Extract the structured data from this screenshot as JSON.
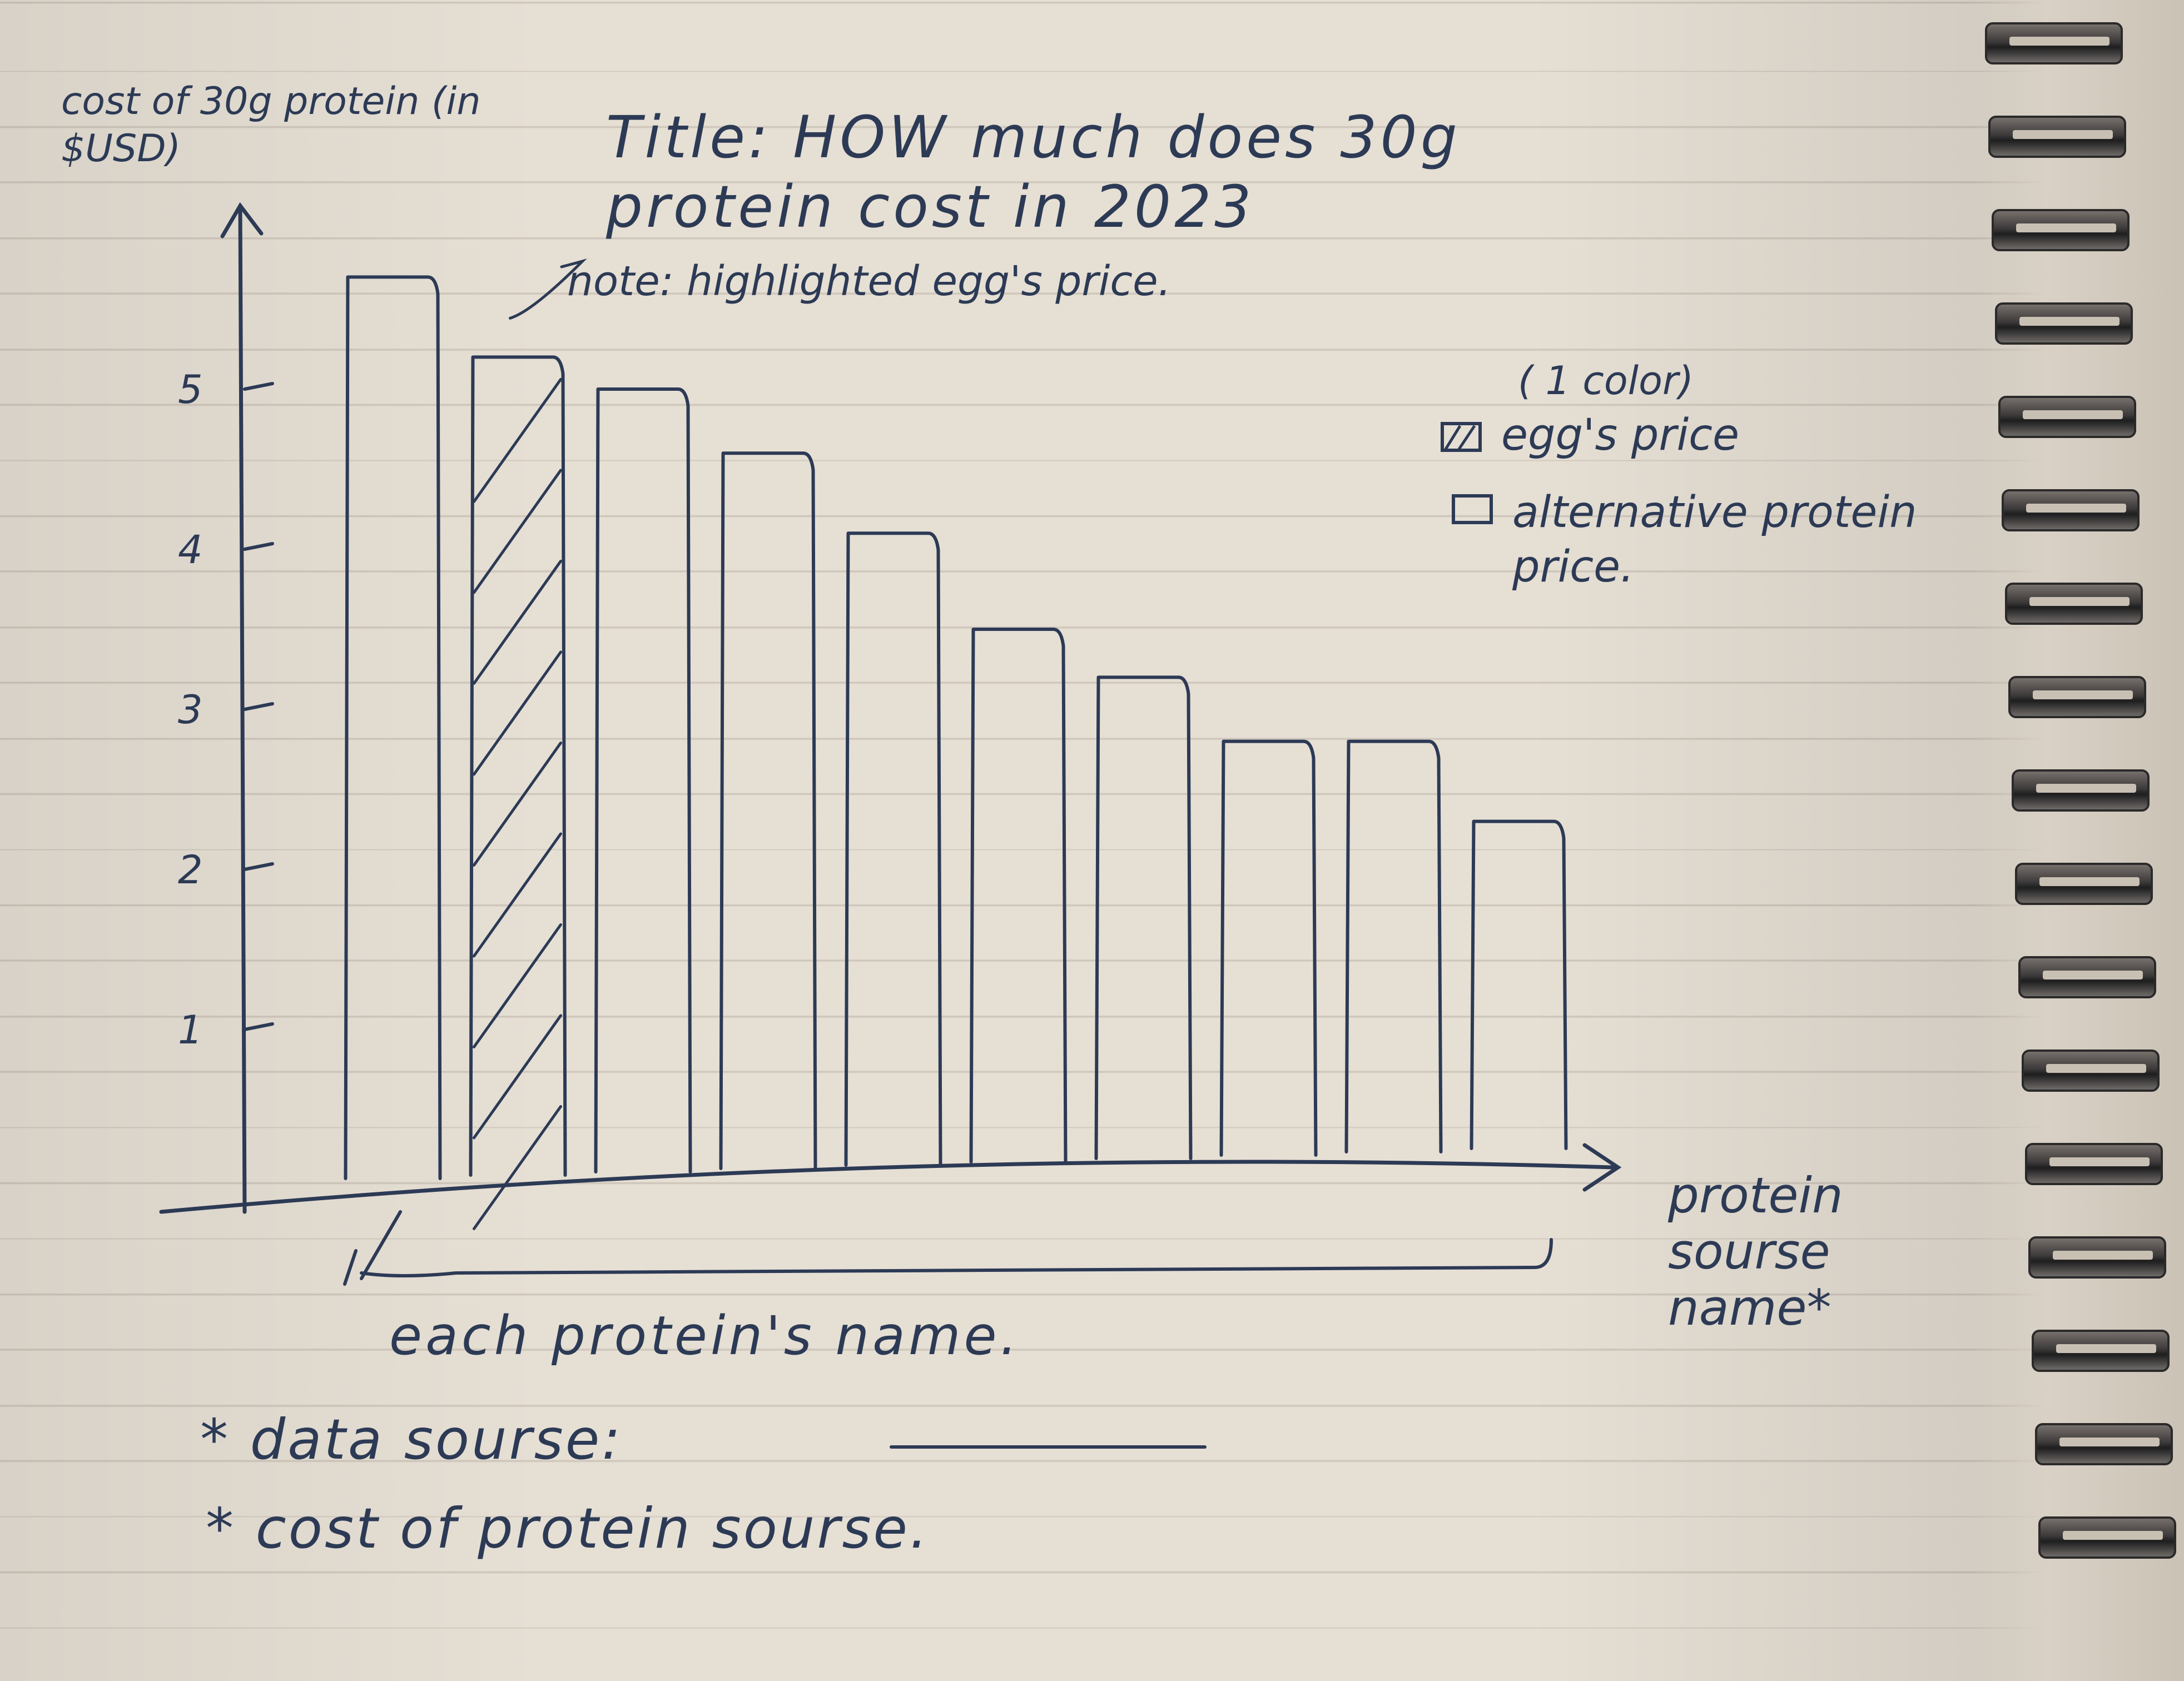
{
  "chart_data": {
    "type": "bar",
    "title": "Title: HOW much does 30g protein cost in 2023",
    "ylabel": "cost of 30g protein (in $USD)",
    "xlabel": "protein sourse name*",
    "x_tick_label": "each protein's name.",
    "y_ticks": [
      "1",
      "2",
      "3",
      "4",
      "5"
    ],
    "ylim": [
      0,
      6
    ],
    "values": [
      5.7,
      5.2,
      5.0,
      4.6,
      4.1,
      3.5,
      3.2,
      2.8,
      2.8,
      2.3
    ],
    "highlight_index": 1,
    "highlight_color": "#2c3a55",
    "annotation": "note: highlighted egg's price.",
    "grid": false,
    "legend": {
      "placement": "top-right",
      "header": "( 1 color)",
      "entries": [
        {
          "label": "egg's price",
          "pattern": "hatched"
        },
        {
          "label": "alternative protein price.",
          "pattern": "empty"
        }
      ]
    }
  },
  "footnotes": {
    "data_source": "* data sourse:",
    "cost_note": "* cost of protein sourse."
  },
  "colors": {
    "ink": "#2c3a55",
    "paper": "#e6dfd4"
  }
}
